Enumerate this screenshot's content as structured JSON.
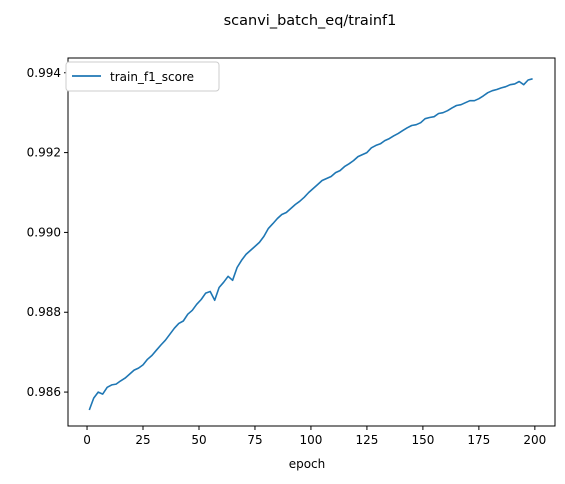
{
  "chart_data": {
    "type": "line",
    "title": "scanvi_batch_eq/trainf1",
    "xlabel": "epoch",
    "ylabel": "",
    "xlim": [
      -8.5,
      209.0
    ],
    "ylim": [
      0.98515,
      0.99437
    ],
    "xticks": [
      0,
      25,
      50,
      75,
      100,
      125,
      150,
      175,
      200
    ],
    "yticks": [
      0.986,
      0.988,
      0.99,
      0.992,
      0.994
    ],
    "ytick_labels": [
      "0.986",
      "0.988",
      "0.990",
      "0.992",
      "0.994"
    ],
    "grid": false,
    "legend_position": "top-left",
    "series": [
      {
        "name": "train_f1_score",
        "color": "#1f77b4",
        "x": [
          1,
          3,
          5,
          7,
          9,
          11,
          13,
          15,
          17,
          19,
          21,
          23,
          25,
          27,
          29,
          31,
          33,
          35,
          37,
          39,
          41,
          43,
          45,
          47,
          49,
          51,
          53,
          55,
          57,
          59,
          61,
          63,
          65,
          67,
          69,
          71,
          73,
          75,
          77,
          79,
          81,
          83,
          85,
          87,
          89,
          91,
          93,
          95,
          97,
          99,
          101,
          103,
          105,
          107,
          109,
          111,
          113,
          115,
          117,
          119,
          121,
          123,
          125,
          127,
          129,
          131,
          133,
          135,
          137,
          139,
          141,
          143,
          145,
          147,
          149,
          151,
          153,
          155,
          157,
          159,
          161,
          163,
          165,
          167,
          169,
          171,
          173,
          175,
          177,
          179,
          181,
          183,
          185,
          187,
          189,
          191,
          193,
          195,
          197,
          199
        ],
        "y": [
          0.98555,
          0.98585,
          0.986,
          0.98595,
          0.98612,
          0.98618,
          0.9862,
          0.98628,
          0.98635,
          0.98645,
          0.98655,
          0.9866,
          0.98668,
          0.98682,
          0.98692,
          0.98705,
          0.98718,
          0.9873,
          0.98745,
          0.9876,
          0.98772,
          0.98778,
          0.98795,
          0.98805,
          0.9882,
          0.98832,
          0.98848,
          0.98852,
          0.9883,
          0.98862,
          0.98875,
          0.9889,
          0.9888,
          0.98912,
          0.9893,
          0.98945,
          0.98955,
          0.98965,
          0.98975,
          0.9899,
          0.9901,
          0.99022,
          0.99035,
          0.99045,
          0.9905,
          0.9906,
          0.9907,
          0.99078,
          0.99088,
          0.991,
          0.9911,
          0.9912,
          0.9913,
          0.99135,
          0.9914,
          0.9915,
          0.99155,
          0.99165,
          0.99172,
          0.9918,
          0.9919,
          0.99195,
          0.992,
          0.99212,
          0.99218,
          0.99222,
          0.9923,
          0.99235,
          0.99242,
          0.99248,
          0.99255,
          0.99262,
          0.99268,
          0.9927,
          0.99275,
          0.99285,
          0.99288,
          0.9929,
          0.99298,
          0.993,
          0.99305,
          0.99312,
          0.99318,
          0.9932,
          0.99325,
          0.9933,
          0.9933,
          0.99335,
          0.99342,
          0.9935,
          0.99355,
          0.99358,
          0.99362,
          0.99365,
          0.9937,
          0.99372,
          0.99378,
          0.9937,
          0.99382,
          0.99385
        ]
      }
    ]
  }
}
